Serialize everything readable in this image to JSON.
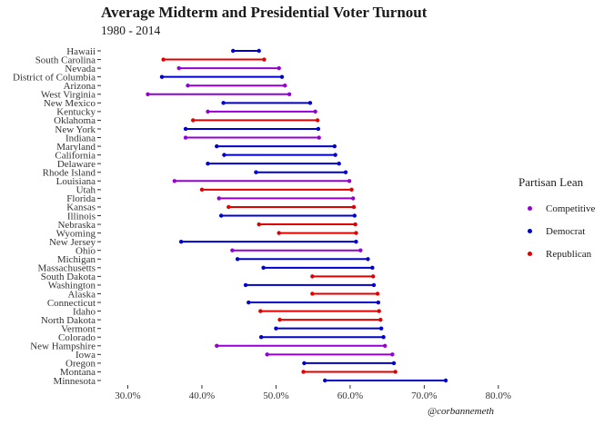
{
  "chart_data": {
    "type": "dumbbell",
    "title": "Average Midterm and Presidential Voter Turnout",
    "subtitle": "1980 - 2014",
    "caption": "@corbannemeth",
    "xlim": [
      0.265,
      0.81
    ],
    "x_ticks": [
      0.3,
      0.4,
      0.5,
      0.6,
      0.7,
      0.8
    ],
    "x_tick_labels": [
      "30.0%",
      "40.0%",
      "50.0%",
      "60.0%",
      "70.0%",
      "80.0%"
    ],
    "grid": false,
    "legend_position": "right",
    "legend": {
      "title": "Partisan Lean",
      "entries": [
        {
          "label": "Competitive",
          "color": "#9400d3"
        },
        {
          "label": "Democrat",
          "color": "#0000cd"
        },
        {
          "label": "Republican",
          "color": "#e00000"
        }
      ]
    },
    "rows": [
      {
        "state": "Hawaii",
        "lean": "Democrat",
        "low": 0.442,
        "high": 0.477
      },
      {
        "state": "South Carolina",
        "lean": "Republican",
        "low": 0.348,
        "high": 0.484
      },
      {
        "state": "Nevada",
        "lean": "Competitive",
        "low": 0.369,
        "high": 0.504
      },
      {
        "state": "District of Columbia",
        "lean": "Democrat",
        "low": 0.346,
        "high": 0.508
      },
      {
        "state": "Arizona",
        "lean": "Competitive",
        "low": 0.381,
        "high": 0.512
      },
      {
        "state": "West Virginia",
        "lean": "Competitive",
        "low": 0.327,
        "high": 0.518
      },
      {
        "state": "New Mexico",
        "lean": "Democrat",
        "low": 0.429,
        "high": 0.546
      },
      {
        "state": "Kentucky",
        "lean": "Competitive",
        "low": 0.408,
        "high": 0.553
      },
      {
        "state": "Oklahoma",
        "lean": "Republican",
        "low": 0.388,
        "high": 0.556
      },
      {
        "state": "New York",
        "lean": "Democrat",
        "low": 0.378,
        "high": 0.557
      },
      {
        "state": "Indiana",
        "lean": "Competitive",
        "low": 0.378,
        "high": 0.558
      },
      {
        "state": "Maryland",
        "lean": "Democrat",
        "low": 0.42,
        "high": 0.579
      },
      {
        "state": "California",
        "lean": "Democrat",
        "low": 0.43,
        "high": 0.58
      },
      {
        "state": "Delaware",
        "lean": "Democrat",
        "low": 0.408,
        "high": 0.585
      },
      {
        "state": "Rhode Island",
        "lean": "Democrat",
        "low": 0.473,
        "high": 0.594
      },
      {
        "state": "Louisiana",
        "lean": "Competitive",
        "low": 0.363,
        "high": 0.599
      },
      {
        "state": "Utah",
        "lean": "Republican",
        "low": 0.4,
        "high": 0.602
      },
      {
        "state": "Florida",
        "lean": "Competitive",
        "low": 0.423,
        "high": 0.604
      },
      {
        "state": "Kansas",
        "lean": "Republican",
        "low": 0.436,
        "high": 0.605
      },
      {
        "state": "Illinois",
        "lean": "Democrat",
        "low": 0.426,
        "high": 0.606
      },
      {
        "state": "Nebraska",
        "lean": "Republican",
        "low": 0.477,
        "high": 0.607
      },
      {
        "state": "Wyoming",
        "lean": "Republican",
        "low": 0.504,
        "high": 0.608
      },
      {
        "state": "New Jersey",
        "lean": "Democrat",
        "low": 0.372,
        "high": 0.608
      },
      {
        "state": "Ohio",
        "lean": "Competitive",
        "low": 0.441,
        "high": 0.614
      },
      {
        "state": "Michigan",
        "lean": "Democrat",
        "low": 0.448,
        "high": 0.624
      },
      {
        "state": "Massachusetts",
        "lean": "Democrat",
        "low": 0.483,
        "high": 0.63
      },
      {
        "state": "South Dakota",
        "lean": "Republican",
        "low": 0.549,
        "high": 0.631
      },
      {
        "state": "Washington",
        "lean": "Democrat",
        "low": 0.459,
        "high": 0.632
      },
      {
        "state": "Alaska",
        "lean": "Republican",
        "low": 0.549,
        "high": 0.637
      },
      {
        "state": "Connecticut",
        "lean": "Democrat",
        "low": 0.463,
        "high": 0.638
      },
      {
        "state": "Idaho",
        "lean": "Republican",
        "low": 0.479,
        "high": 0.639
      },
      {
        "state": "North Dakota",
        "lean": "Republican",
        "low": 0.505,
        "high": 0.641
      },
      {
        "state": "Vermont",
        "lean": "Democrat",
        "low": 0.5,
        "high": 0.642
      },
      {
        "state": "Colorado",
        "lean": "Democrat",
        "low": 0.48,
        "high": 0.645
      },
      {
        "state": "New Hampshire",
        "lean": "Competitive",
        "low": 0.42,
        "high": 0.647
      },
      {
        "state": "Iowa",
        "lean": "Competitive",
        "low": 0.488,
        "high": 0.657
      },
      {
        "state": "Oregon",
        "lean": "Democrat",
        "low": 0.538,
        "high": 0.659
      },
      {
        "state": "Montana",
        "lean": "Republican",
        "low": 0.537,
        "high": 0.661
      },
      {
        "state": "Minnesota",
        "lean": "Democrat",
        "low": 0.566,
        "high": 0.729
      }
    ]
  }
}
